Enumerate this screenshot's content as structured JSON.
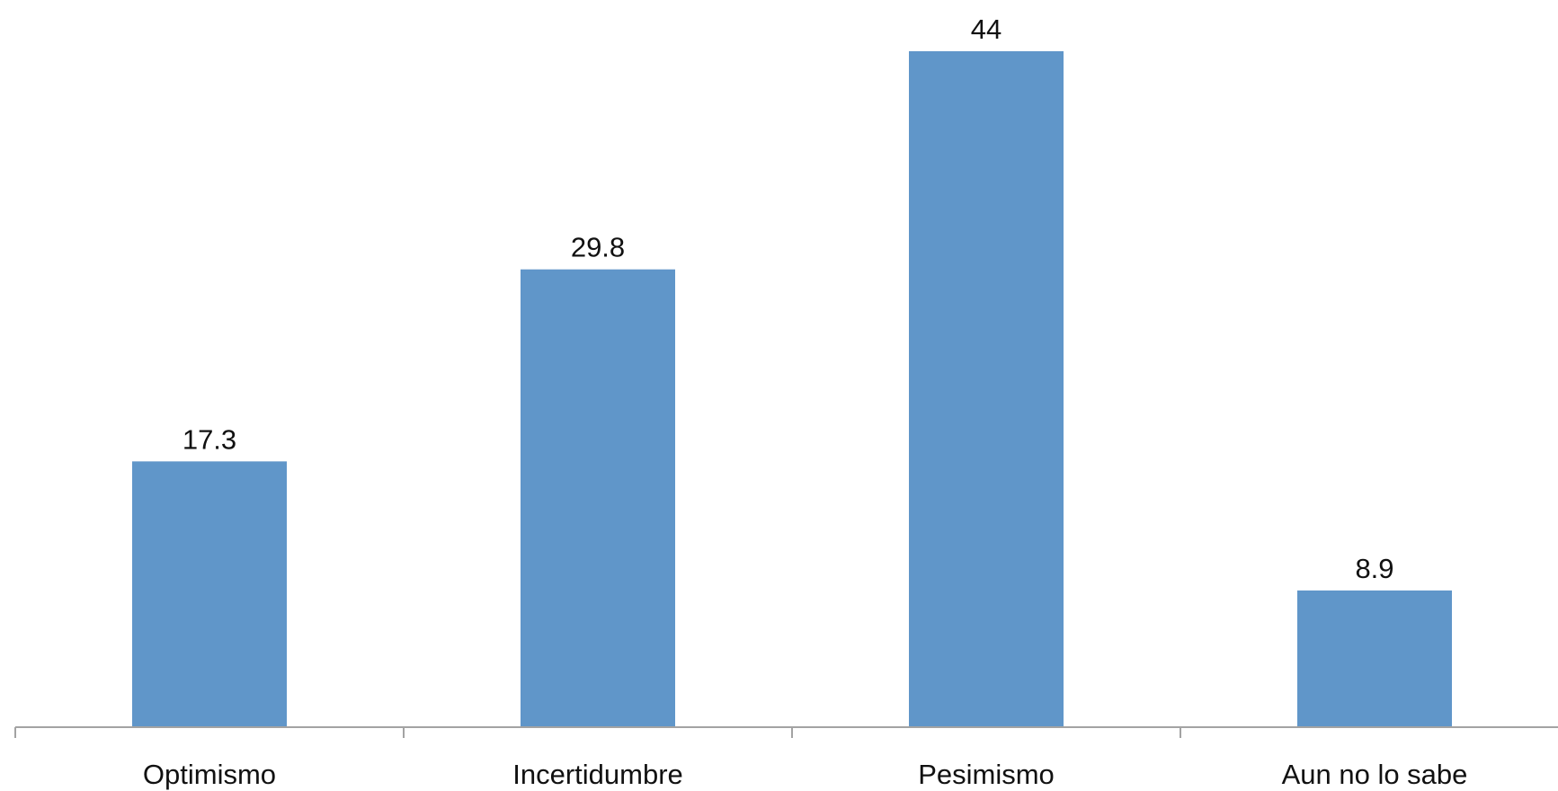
{
  "chart_data": {
    "type": "bar",
    "categories": [
      "Optimismo",
      "Incertidumbre",
      "Pesimismo",
      "Aun no lo sabe"
    ],
    "values": [
      17.3,
      29.8,
      44,
      8.9
    ],
    "data_labels": [
      "17.3",
      "29.8",
      "44",
      "8.9"
    ],
    "title": "",
    "xlabel": "",
    "ylabel": "",
    "ylim": [
      0,
      44
    ],
    "grid": false,
    "legend": "none",
    "bar_color": "#6096c9"
  }
}
